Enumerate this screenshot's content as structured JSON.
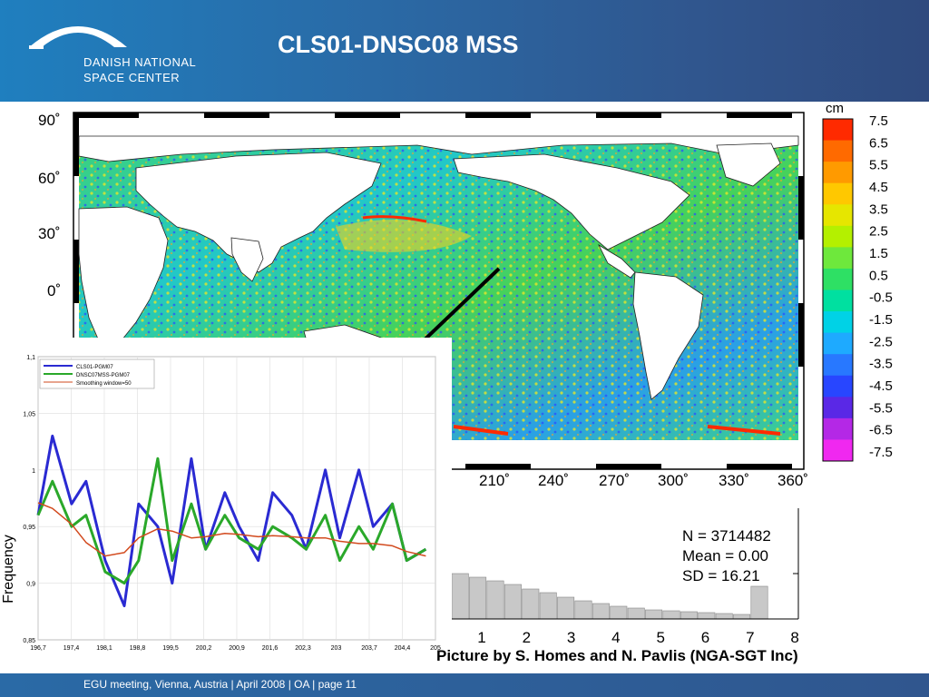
{
  "slide": {
    "title": "CLS01-DNSC08 MSS",
    "logo": {
      "line1": "DANISH NATIONAL",
      "line2": "SPACE CENTER"
    },
    "footer": "EGU meeting, Vienna, Austria  | April  2008 | OA | page 11",
    "credit": "Picture by S. Homes and N. Pavlis (NGA-SGT Inc)"
  },
  "map": {
    "lat_labels": [
      "90˚",
      "60˚",
      "30˚",
      "0˚"
    ],
    "lon_labels": [
      "210˚",
      "240˚",
      "270˚",
      "300˚",
      "330˚",
      "360˚"
    ]
  },
  "colorbar": {
    "unit": "cm",
    "labels": [
      "7.5",
      "6.5",
      "5.5",
      "4.5",
      "3.5",
      "2.5",
      "1.5",
      "0.5",
      "-0.5",
      "-1.5",
      "-2.5",
      "-3.5",
      "-4.5",
      "-5.5",
      "-6.5",
      "-7.5"
    ],
    "colors": [
      "#ff2a00",
      "#ff6a00",
      "#ff9a00",
      "#ffc800",
      "#e6e600",
      "#b4f000",
      "#6ee83c",
      "#2ee064",
      "#00e0a0",
      "#00d2e6",
      "#1eaaff",
      "#2878ff",
      "#2846ff",
      "#5a28e6",
      "#b428e6",
      "#f028f0"
    ]
  },
  "histogram": {
    "N_label": "N =  3714482",
    "mean_label": "Mean = 0.00",
    "sd_label": "SD = 16.21",
    "y_axis_label": "Frequency",
    "x_ticks": [
      "1",
      "2",
      "3",
      "4",
      "5",
      "6",
      "7",
      "8"
    ]
  },
  "chart_data": {
    "type": "line",
    "x": [
      196.7,
      197.0,
      197.4,
      197.7,
      198.1,
      198.5,
      198.8,
      199.2,
      199.5,
      199.9,
      200.2,
      200.6,
      200.9,
      201.3,
      201.6,
      202.0,
      202.3,
      202.7,
      203.0,
      203.4,
      203.7,
      204.1,
      204.4,
      204.8
    ],
    "x_ticks": [
      "196,7",
      "197,4",
      "198,1",
      "198,8",
      "199,5",
      "200,2",
      "200,9",
      "201,6",
      "202,3",
      "203",
      "203,7",
      "204,4",
      "205"
    ],
    "y_ticks": [
      "1,1",
      "1,05",
      "1",
      "0,95",
      "0,9",
      "0,85"
    ],
    "ylim": [
      0.85,
      1.1
    ],
    "xlim": [
      196.7,
      205.0
    ],
    "legend": [
      "CLS01-PGM07",
      "DNSC07MSS-PGM07",
      "Smoothing window=50"
    ],
    "legend_position": "top-left",
    "grid": true,
    "series": [
      {
        "name": "CLS01-PGM07",
        "color": "#2a2ad2",
        "values": [
          0.96,
          1.03,
          0.97,
          0.99,
          0.92,
          0.88,
          0.97,
          0.95,
          0.9,
          1.01,
          0.93,
          0.98,
          0.95,
          0.92,
          0.98,
          0.96,
          0.93,
          1.0,
          0.94,
          1.0,
          0.95,
          0.97,
          0.92,
          0.93
        ]
      },
      {
        "name": "DNSC07MSS-PGM07",
        "color": "#2aa82a",
        "values": [
          0.96,
          0.99,
          0.95,
          0.96,
          0.91,
          0.9,
          0.92,
          1.01,
          0.92,
          0.97,
          0.93,
          0.96,
          0.94,
          0.93,
          0.95,
          0.94,
          0.93,
          0.96,
          0.92,
          0.95,
          0.93,
          0.97,
          0.92,
          0.93
        ]
      },
      {
        "name": "Smoothing window=50",
        "color": "#d24a1e",
        "values": [
          0.971,
          0.966,
          0.952,
          0.936,
          0.924,
          0.927,
          0.94,
          0.948,
          0.946,
          0.94,
          0.941,
          0.944,
          0.943,
          0.941,
          0.942,
          0.941,
          0.94,
          0.94,
          0.937,
          0.935,
          0.935,
          0.933,
          0.928,
          0.924
        ]
      }
    ]
  }
}
